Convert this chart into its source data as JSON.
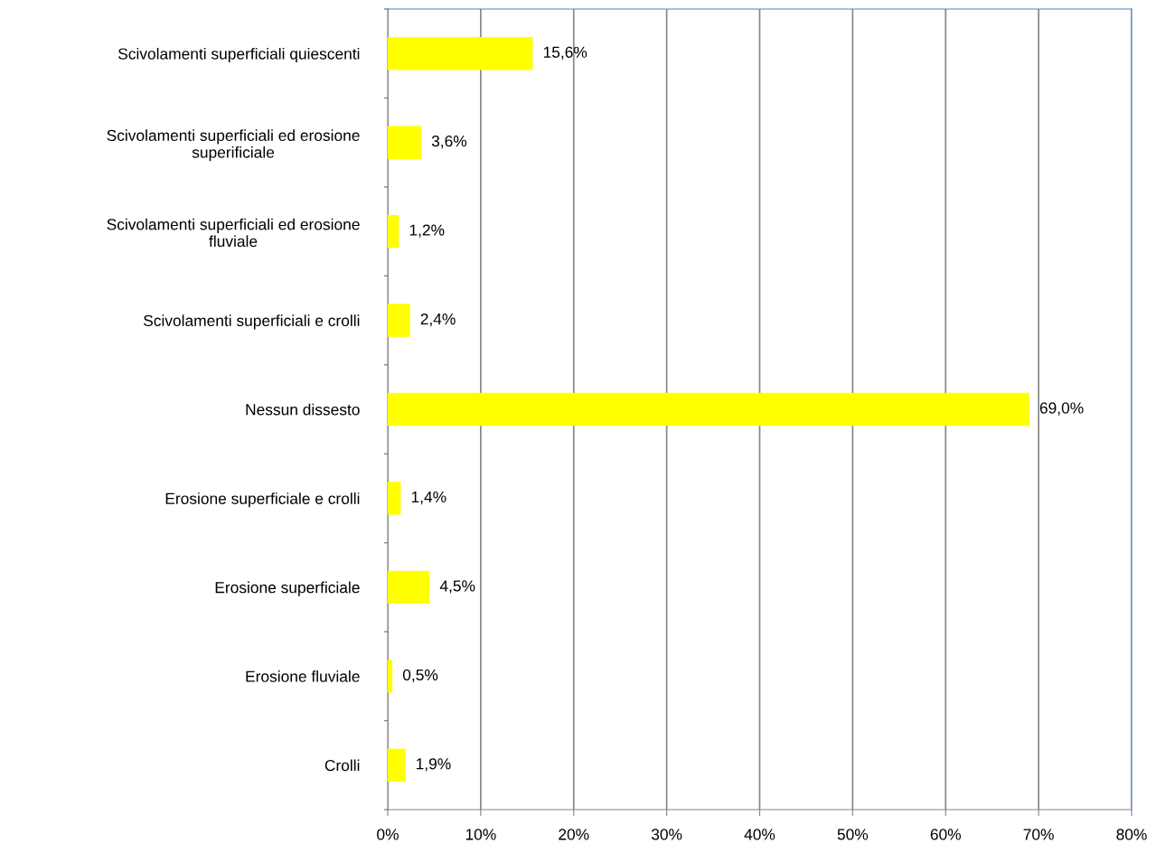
{
  "chart_data": {
    "type": "bar",
    "orientation": "horizontal",
    "categories": [
      "Scivolamenti superficiali quiescenti",
      "Scivolamenti superficiali ed erosione\nsuperificiale",
      "Scivolamenti superficiali ed erosione\nfluviale",
      "Scivolamenti superficiali e crolli",
      "Nessun dissesto",
      "Erosione superficiale e crolli",
      "Erosione superficiale",
      "Erosione fluviale",
      "Crolli"
    ],
    "values": [
      15.6,
      3.6,
      1.2,
      2.4,
      69.0,
      1.4,
      4.5,
      0.5,
      1.9
    ],
    "value_labels": [
      "15,6%",
      "3,6%",
      "1,2%",
      "2,4%",
      "69,0%",
      "1,4%",
      "4,5%",
      "0,5%",
      "1,9%"
    ],
    "color": "#ffff00",
    "xlim": [
      0,
      80
    ],
    "xticks": [
      {
        "value": 0,
        "label": "0%"
      },
      {
        "value": 10,
        "label": "10%"
      },
      {
        "value": 20,
        "label": "20%"
      },
      {
        "value": 30,
        "label": "30%"
      },
      {
        "value": 40,
        "label": "40%"
      },
      {
        "value": 50,
        "label": "50%"
      },
      {
        "value": 60,
        "label": "60%"
      },
      {
        "value": 70,
        "label": "70%"
      },
      {
        "value": 80,
        "label": "80%"
      }
    ],
    "grid": "x"
  }
}
